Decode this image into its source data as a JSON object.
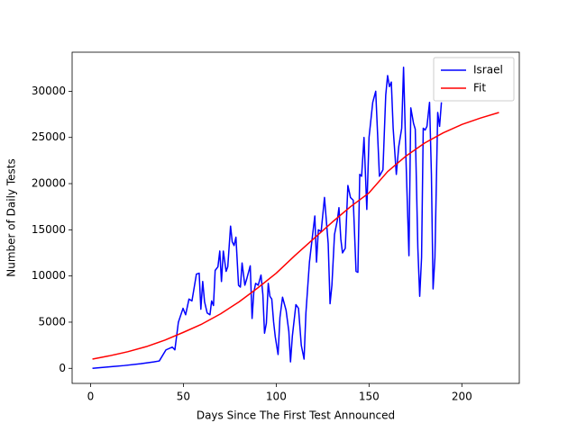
{
  "chart_data": {
    "type": "line",
    "xlabel": "Days Since The First Test Announced",
    "ylabel": "Number of Daily Tests",
    "xlim": [
      -9.95,
      230.95
    ],
    "ylim": [
      -1630,
      34230
    ],
    "xticks": [
      0,
      50,
      100,
      150,
      200
    ],
    "yticks": [
      0,
      5000,
      10000,
      15000,
      20000,
      25000,
      30000
    ],
    "grid": false,
    "legend": "upper right",
    "series": [
      {
        "name": "Israel",
        "color": "#0000ff",
        "x": [
          1,
          18,
          27,
          34,
          37,
          40.6,
          44,
          45.4,
          47.3,
          49.8,
          51.2,
          53,
          54.6,
          57,
          58.5,
          59.4,
          60.4,
          61.4,
          62.8,
          64.3,
          65.2,
          66.2,
          67.1,
          68.6,
          69.6,
          70.5,
          71.5,
          73,
          73.9,
          75.4,
          76.3,
          77.3,
          78.3,
          79.7,
          80.7,
          81.6,
          83.1,
          84,
          86,
          87,
          87.9,
          88.9,
          90.3,
          91.8,
          92.8,
          93.7,
          94.7,
          95.7,
          96.6,
          97.6,
          98.6,
          99.5,
          101,
          102,
          103.4,
          105.3,
          106.8,
          107.7,
          108.7,
          110.6,
          112,
          113.5,
          115,
          116,
          117.9,
          119.8,
          120.8,
          121.7,
          122.7,
          124.2,
          126,
          128,
          129,
          130,
          131.4,
          132.9,
          133.8,
          134.8,
          135.7,
          137.2,
          138.6,
          140,
          141.5,
          143,
          144,
          145,
          146,
          147.3,
          148.8,
          150,
          152,
          153.6,
          155.6,
          157.5,
          159,
          160,
          161,
          162,
          163,
          164.7,
          166,
          167.6,
          168.6,
          170,
          171.5,
          172.5,
          174,
          174.9,
          176.3,
          177.3,
          178.3,
          179.2,
          180.2,
          181.2,
          182.6,
          183.6,
          184.5,
          185.5,
          187,
          188,
          189
        ],
        "values": [
          0,
          300,
          500,
          700,
          800,
          2000,
          2300,
          2000,
          5000,
          6500,
          5800,
          7500,
          7300,
          10200,
          10300,
          6400,
          9400,
          7200,
          6000,
          5800,
          7300,
          6800,
          10600,
          11000,
          12700,
          9400,
          12700,
          10500,
          11000,
          15400,
          13700,
          13300,
          14200,
          9000,
          8800,
          11400,
          9000,
          9600,
          11100,
          5400,
          8200,
          9200,
          9000,
          10100,
          8000,
          3800,
          4900,
          9200,
          7800,
          7500,
          5000,
          3400,
          1500,
          5500,
          7700,
          6300,
          4000,
          700,
          3500,
          6900,
          6500,
          2500,
          1000,
          6000,
          11500,
          14800,
          16500,
          11500,
          15000,
          14800,
          18500,
          13500,
          7000,
          9000,
          14500,
          16000,
          17400,
          14000,
          12500,
          13000,
          19800,
          18500,
          18200,
          10500,
          10400,
          21000,
          20800,
          25000,
          17200,
          25000,
          28800,
          30000,
          20800,
          21500,
          29600,
          31700,
          30500,
          31000,
          26000,
          21000,
          24000,
          26000,
          32600,
          22000,
          12200,
          28200,
          26500,
          25900,
          13000,
          7800,
          12000,
          26000,
          25800,
          26200,
          28800,
          21000,
          8600,
          12000,
          27700,
          26200,
          28800
        ]
      },
      {
        "name": "Fit",
        "color": "#ff0000",
        "x": [
          1,
          10,
          20,
          30,
          40,
          50,
          60,
          70,
          80,
          90,
          100,
          110,
          120,
          130,
          140,
          150,
          160,
          170,
          180,
          190,
          200,
          210,
          220
        ],
        "values": [
          1000,
          1350,
          1800,
          2350,
          3050,
          3900,
          4800,
          5900,
          7200,
          8700,
          10300,
          12200,
          14000,
          15800,
          17500,
          19000,
          21300,
          23000,
          24400,
          25500,
          26400,
          27100,
          27700
        ]
      }
    ]
  }
}
